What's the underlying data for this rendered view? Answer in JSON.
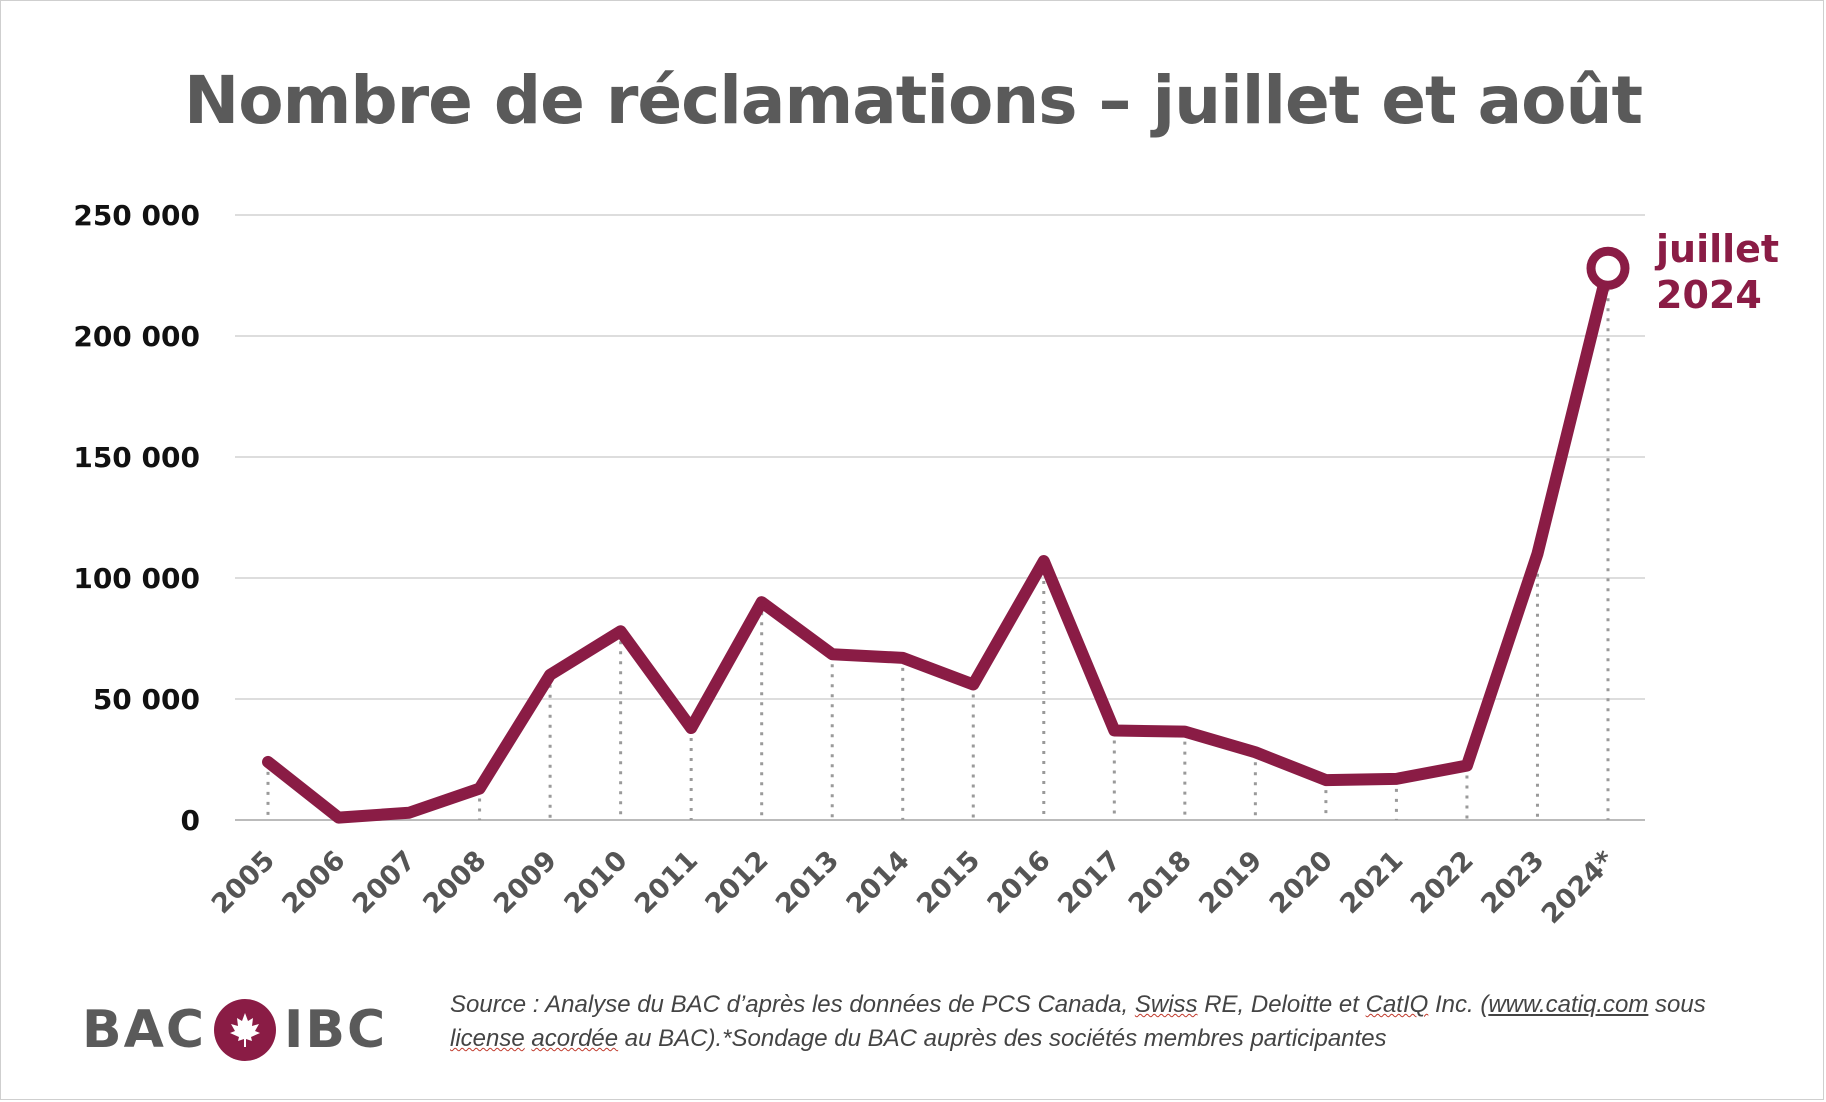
{
  "title": "Nombre de réclamations – juillet et août",
  "chart_data": {
    "type": "line",
    "title": "Nombre de réclamations – juillet et août",
    "xlabel": "",
    "ylabel": "",
    "categories": [
      "2005",
      "2006",
      "2007",
      "2008",
      "2009",
      "2010",
      "2011",
      "2012",
      "2013",
      "2014",
      "2015",
      "2016",
      "2017",
      "2018",
      "2019",
      "2020",
      "2021",
      "2022",
      "2023",
      "2024*"
    ],
    "values": [
      24000,
      1000,
      3000,
      13000,
      60000,
      78000,
      38000,
      90000,
      68500,
      67000,
      56000,
      107000,
      37000,
      36500,
      28000,
      16500,
      17000,
      22500,
      110000,
      228000
    ],
    "ylim": [
      0,
      250000
    ],
    "yticks": [
      0,
      50000,
      100000,
      150000,
      200000,
      250000
    ],
    "ytick_labels": [
      "0",
      "50 000",
      "100 000",
      "150 000",
      "200 000",
      "250 000"
    ],
    "grid": true,
    "line_color": "#8a1c45",
    "grid_color": "#dddddd",
    "drop_line_color": "#9a9a9a",
    "annotation": {
      "text_line1": "juillet",
      "text_line2": "2024",
      "category": "2024*"
    }
  },
  "footer": {
    "logo_left": "BAC",
    "logo_right": "IBC",
    "source_parts": [
      {
        "text": "Source : Analyse du BAC d’après les données de PCS Canada, ",
        "style": ""
      },
      {
        "text": "Swiss",
        "style": "ul-red"
      },
      {
        "text": " RE, Deloitte et ",
        "style": ""
      },
      {
        "text": "CatIQ",
        "style": "ul-red"
      },
      {
        "text": " Inc. (",
        "style": ""
      },
      {
        "text": "www.catiq.com",
        "style": "ul"
      },
      {
        "text": " sous ",
        "style": ""
      },
      {
        "text": "license",
        "style": "ul-red"
      },
      {
        "text": " ",
        "style": ""
      },
      {
        "text": "acordée",
        "style": "ul-red"
      },
      {
        "text": " au BAC).*Sondage du BAC auprès des sociétés membres participantes",
        "style": ""
      }
    ]
  }
}
